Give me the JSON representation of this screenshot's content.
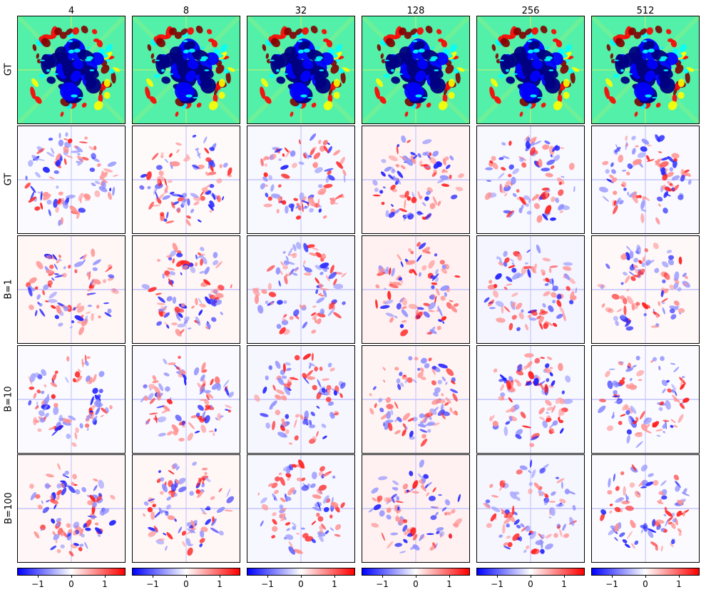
{
  "column_titles": [
    "4",
    "8",
    "32",
    "128",
    "256",
    "512"
  ],
  "row_labels": [
    "GT",
    "GT",
    "B=1",
    "B=10",
    "B=100"
  ],
  "panel_kinds": [
    "field",
    "diff",
    "diff",
    "diff",
    "diff"
  ],
  "colorbar": {
    "colormap": "bwr",
    "colors": [
      "#0000ff",
      "#ffffff",
      "#ff0000"
    ],
    "tick_values": [
      -1,
      0,
      1
    ],
    "tick_labels": [
      "−1",
      "0",
      "1"
    ],
    "range": [
      -1.6,
      1.6
    ]
  },
  "field_colormap": "jet",
  "field_colors": [
    "#00007f",
    "#0000ff",
    "#00ffff",
    "#7fff7f",
    "#ffff00",
    "#ff0000",
    "#7f0000"
  ]
}
